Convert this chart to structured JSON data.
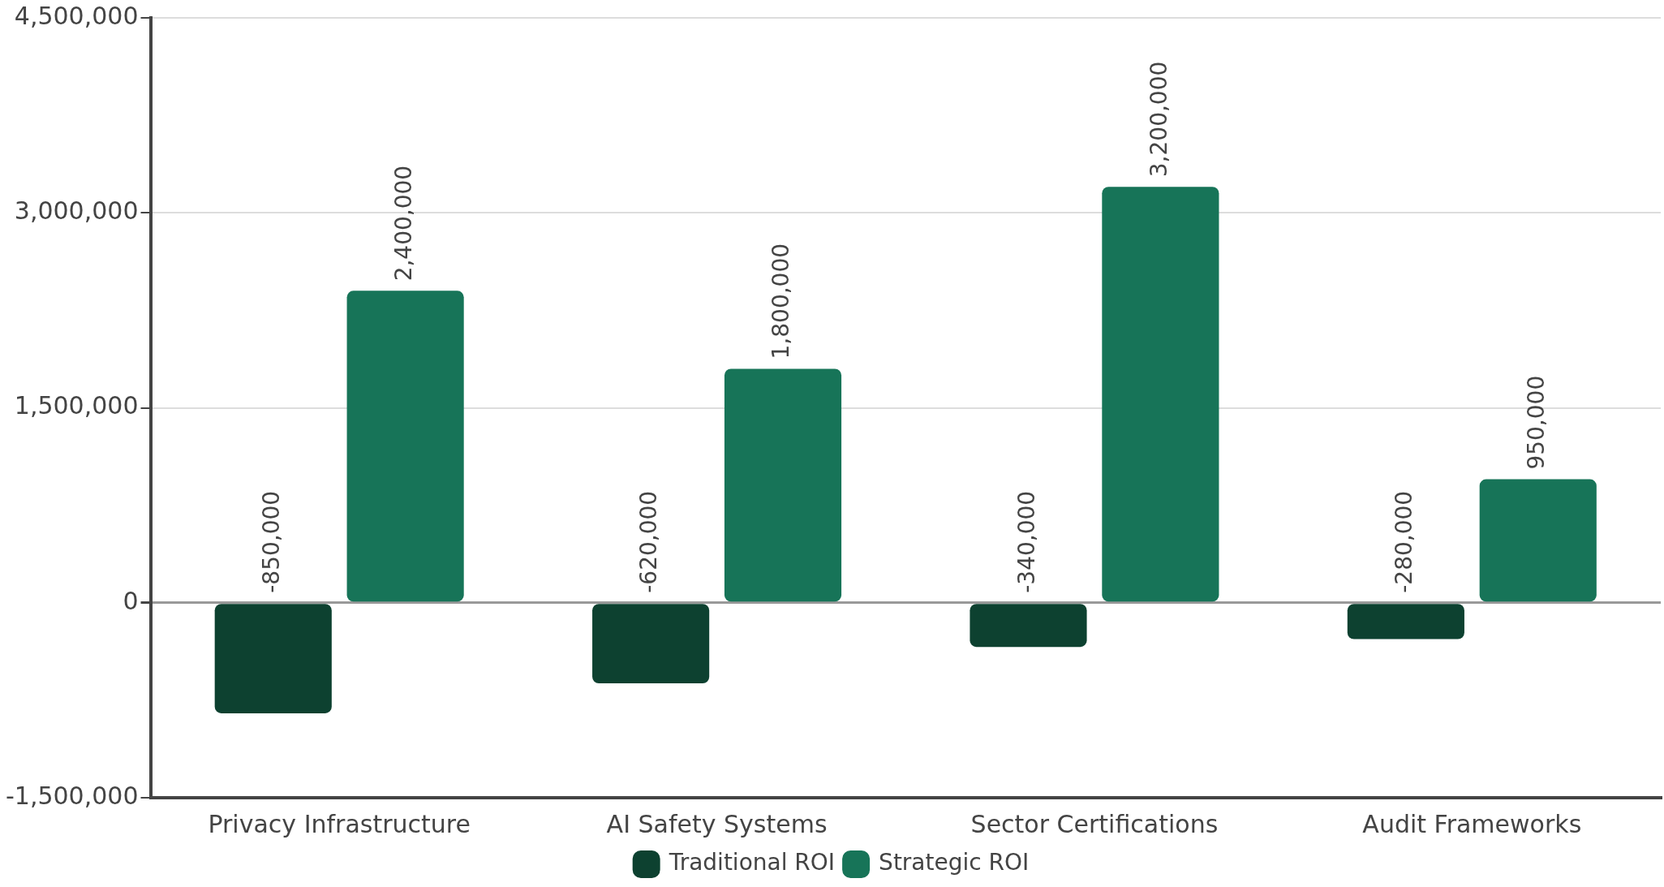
{
  "chart_data": {
    "type": "bar",
    "categories": [
      "Privacy Infrastructure",
      "AI Safety Systems",
      "Sector Certifications",
      "Audit Frameworks"
    ],
    "series": [
      {
        "name": "Traditional ROI",
        "color": "#0d4130",
        "values": [
          -850000,
          -620000,
          -340000,
          -280000
        ],
        "value_labels": [
          "-850,000",
          "-620,000",
          "-340,000",
          "-280,000"
        ]
      },
      {
        "name": "Strategic ROI",
        "color": "#177458",
        "values": [
          2400000,
          1800000,
          3200000,
          950000
        ],
        "value_labels": [
          "2,400,000",
          "1,800,000",
          "3,200,000",
          "950,000"
        ]
      }
    ],
    "ylim": [
      -1500000,
      4500000
    ],
    "yticks": [
      {
        "value": -1500000,
        "label": "-1,500,000"
      },
      0,
      {
        "value": 1500000,
        "label": "1,500,000"
      },
      {
        "value": 3000000,
        "label": "3,000,000"
      },
      {
        "value": 4500000,
        "label": "4,500,000"
      }
    ],
    "grid": "y",
    "legend": "bottom"
  }
}
